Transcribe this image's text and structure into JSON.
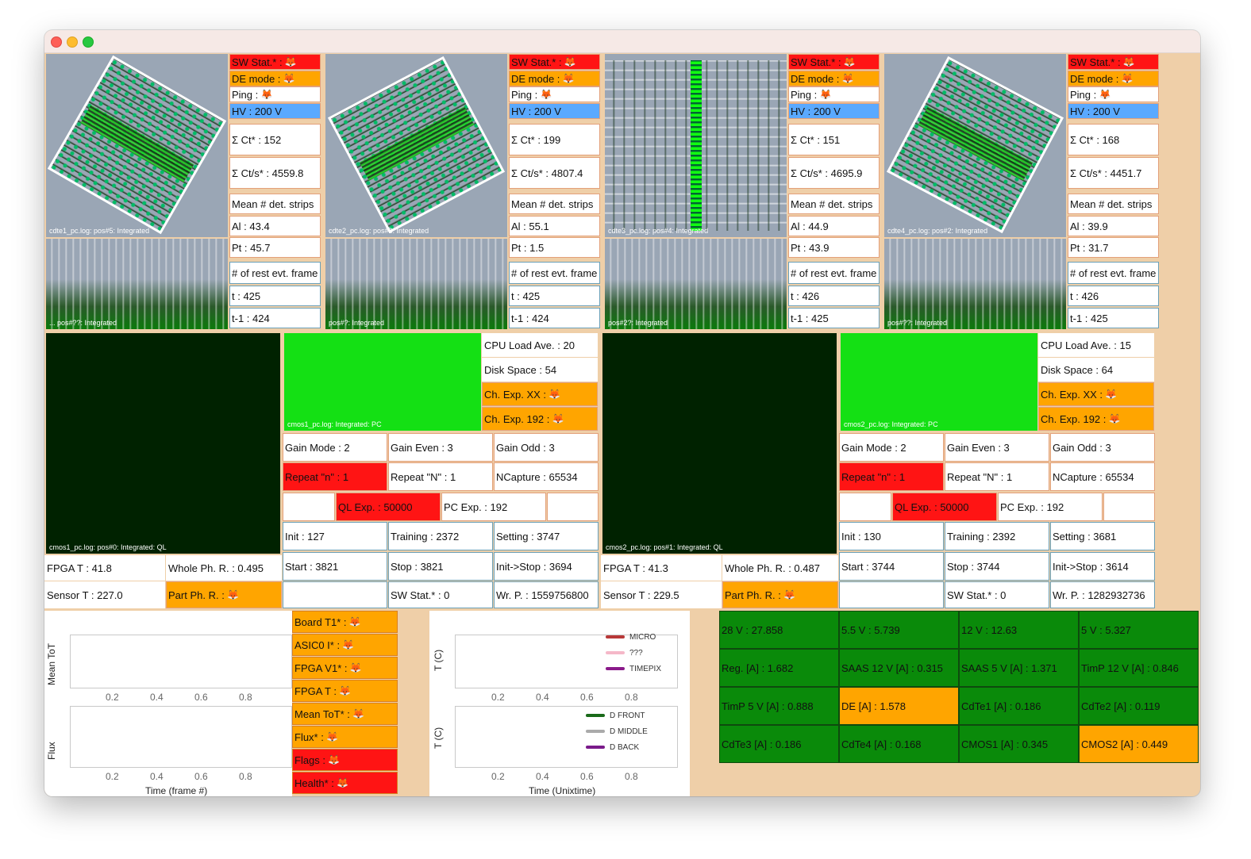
{
  "colors": {
    "alarm": "#ff1414",
    "warning": "#ffa500",
    "hv": "#5aa9ff",
    "ok_power": "#0a8a0a",
    "panel_bg": "#efcfa8",
    "image_bg": "#9aa6b5"
  },
  "cdte": [
    {
      "image_caption": "cdte1_pc.log: pos#5: Integrated",
      "spec_caption": "... pos#??: Integrated",
      "sw_stat": "SW Stat.* :",
      "de_mode": "DE mode :",
      "ping": "Ping :",
      "hv": "HV : 200 V",
      "sum_ct": "Σ Ct* : 152",
      "sum_cts": "Σ Ct/s* : 4559.8",
      "mean_header": "Mean # det. strips",
      "al": "Al : 43.4",
      "pt": "Pt : 45.7",
      "rest_header": "# of rest evt. frame",
      "t": "t : 425",
      "t1": "t-1 : 424"
    },
    {
      "image_caption": "cdte2_pc.log: pos#3: Integrated",
      "spec_caption": "pos#?: Integrated",
      "sw_stat": "SW Stat.* :",
      "de_mode": "DE mode :",
      "ping": "Ping :",
      "hv": "HV : 200 V",
      "sum_ct": "Σ Ct* : 199",
      "sum_cts": "Σ Ct/s* : 4807.4",
      "mean_header": "Mean # det. strips",
      "al": "Al : 55.1",
      "pt": "Pt : 1.5",
      "rest_header": "# of rest evt. frame",
      "t": "t : 425",
      "t1": "t-1 : 424"
    },
    {
      "image_caption": "cdte3_pc.log: pos#4: Integrated",
      "spec_caption": "pos#2?: Integrated",
      "sw_stat": "SW Stat.* :",
      "de_mode": "DE mode :",
      "ping": "Ping :",
      "hv": "HV : 200 V",
      "sum_ct": "Σ Ct* : 151",
      "sum_cts": "Σ Ct/s* : 4695.9",
      "mean_header": "Mean # det. strips",
      "al": "Al : 44.9",
      "pt": "Pt : 43.9",
      "rest_header": "# of rest evt. frame",
      "t": "t : 426",
      "t1": "t-1 : 425"
    },
    {
      "image_caption": "cdte4_pc.log: pos#2: Integrated",
      "spec_caption": "pos#??: Integrated",
      "sw_stat": "SW Stat.* :",
      "de_mode": "DE mode :",
      "ping": "Ping :",
      "hv": "HV : 200 V",
      "sum_ct": "Σ Ct* : 168",
      "sum_cts": "Σ Ct/s* : 4451.7",
      "mean_header": "Mean # det. strips",
      "al": "Al : 39.9",
      "pt": "Pt : 31.7",
      "rest_header": "# of rest evt. frame",
      "t": "t : 426",
      "t1": "t-1 : 425"
    }
  ],
  "cmos": [
    {
      "ql_caption": "cmos1_pc.log: pos#0: Integrated: QL",
      "pc_caption": "cmos1_pc.log: Integrated: PC",
      "cpu": "CPU Load Ave. : 20",
      "disk": "Disk Space : 54",
      "ch_xx": "Ch. Exp. XX :",
      "ch_192": "Ch. Exp. 192 :",
      "gain_mode": "Gain Mode : 2",
      "gain_even": "Gain Even : 3",
      "gain_odd": "Gain Odd : 3",
      "repeat_n_low": "Repeat \"n\" : 1",
      "repeat_n_up": "Repeat \"N\" : 1",
      "ncapture": "NCapture : 65534",
      "ql_exp": "QL Exp. : 50000",
      "pc_exp": "PC Exp. : 192",
      "init": "Init : 127",
      "training": "Training : 2372",
      "setting": "Setting : 3747",
      "fpga_t": "FPGA T : 41.8",
      "whole_ph": "Whole Ph. R. : 0.495",
      "start": "Start : 3821",
      "stop": "Stop : 3821",
      "init_stop": "Init->Stop : 3694",
      "sensor_t": "Sensor T : 227.0",
      "part_ph": "Part Ph. R. :",
      "sw_stat": "SW Stat.* : 0",
      "wr_p": "Wr. P. : 1559756800"
    },
    {
      "ql_caption": "cmos2_pc.log: pos#1: Integrated: QL",
      "pc_caption": "cmos2_pc.log: Integrated: PC",
      "cpu": "CPU Load Ave. : 15",
      "disk": "Disk Space : 64",
      "ch_xx": "Ch. Exp. XX :",
      "ch_192": "Ch. Exp. 192 :",
      "gain_mode": "Gain Mode : 2",
      "gain_even": "Gain Even : 3",
      "gain_odd": "Gain Odd : 3",
      "repeat_n_low": "Repeat \"n\" : 1",
      "repeat_n_up": "Repeat \"N\" : 1",
      "ncapture": "NCapture : 65534",
      "ql_exp": "QL Exp. : 50000",
      "pc_exp": "PC Exp. : 192",
      "init": "Init : 130",
      "training": "Training : 2392",
      "setting": "Setting : 3681",
      "fpga_t": "FPGA T : 41.3",
      "whole_ph": "Whole Ph. R. : 0.487",
      "start": "Start : 3744",
      "stop": "Stop : 3744",
      "init_stop": "Init->Stop : 3614",
      "sensor_t": "Sensor T : 229.5",
      "part_ph": "Part Ph. R. :",
      "sw_stat": "SW Stat.* : 0",
      "wr_p": "Wr. P. : 1282932736"
    }
  ],
  "tot_plots": {
    "top_ylabel": "Mean ToT",
    "bottom_ylabel": "Flux",
    "xlabel": "Time (frame #)",
    "ticks": [
      "0.2",
      "0.4",
      "0.6",
      "0.8"
    ]
  },
  "status_flags": [
    "Board T1* :",
    "ASIC0 I* :",
    "FPGA V1* :",
    "FPGA T :",
    "Mean ToT* :",
    "Flux* :",
    "Flags :",
    "Health* :"
  ],
  "temp_plots": {
    "top_ylabel": "T (C)",
    "bottom_ylabel": "T (C)",
    "xlabel": "Time (Unixtime)",
    "ticks": [
      "0.2",
      "0.4",
      "0.6",
      "0.8"
    ],
    "legend_top": [
      "MICRO",
      "???",
      "TIMEPIX"
    ],
    "legend_bottom": [
      "D FRONT",
      "D MIDDLE",
      "D BACK"
    ]
  },
  "power": [
    [
      "28 V : 27.858",
      "5.5 V : 5.739",
      "12 V : 12.63",
      "5 V : 5.327"
    ],
    [
      "Reg. [A] : 1.682",
      "SAAS 12 V [A] : 0.315",
      "SAAS 5 V [A] : 1.371",
      "TimP 12 V [A] : 0.846"
    ],
    [
      "TimP 5 V [A] : 0.888",
      "DE [A] : 1.578",
      "CdTe1 [A] : 0.186",
      "CdTe2 [A] : 0.119"
    ],
    [
      "CdTe3 [A] : 0.186",
      "CdTe4 [A] : 0.168",
      "CMOS1 [A] : 0.345",
      "CMOS2 [A] : 0.449"
    ]
  ],
  "power_status": [
    [
      "ok",
      "ok",
      "ok",
      "ok"
    ],
    [
      "ok",
      "ok",
      "ok",
      "ok"
    ],
    [
      "ok",
      "warning",
      "ok",
      "ok"
    ],
    [
      "ok",
      "ok",
      "ok",
      "warning"
    ]
  ],
  "fox_glyph": "🦊"
}
